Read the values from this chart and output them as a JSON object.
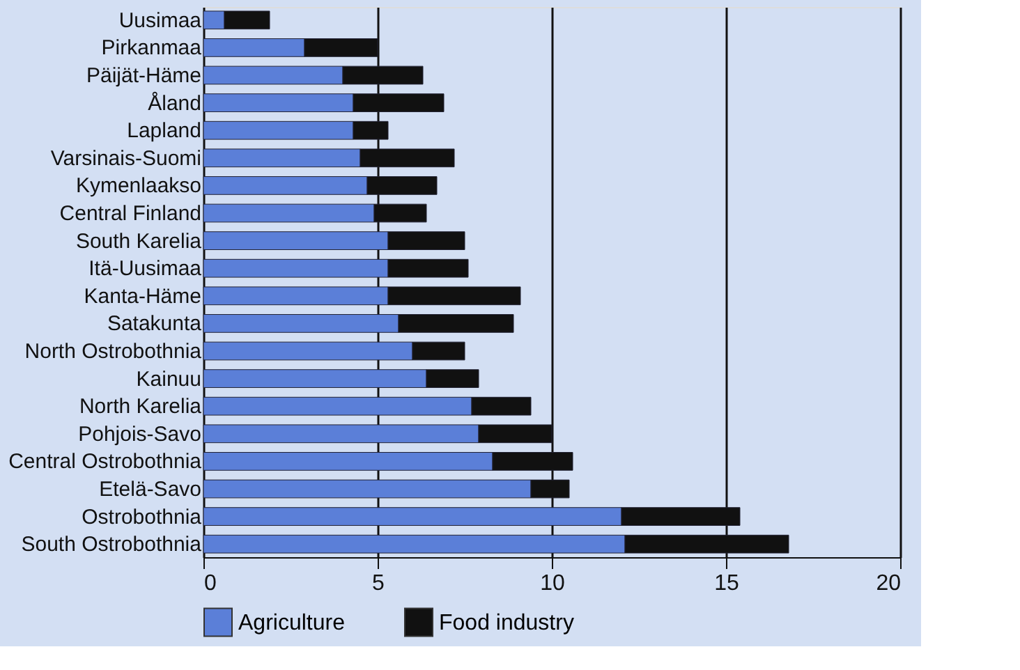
{
  "chart_data": {
    "type": "bar",
    "orientation": "horizontal",
    "stacked": true,
    "categories": [
      "Uusimaa",
      "Pirkanmaa",
      "Päijät-Häme",
      "Åland",
      "Lapland",
      "Varsinais-Suomi",
      "Kymenlaakso",
      "Central Finland",
      "South Karelia",
      "Itä-Uusimaa",
      "Kanta-Häme",
      "Satakunta",
      "North Ostrobothnia",
      "Kainuu",
      "North Karelia",
      "Pohjois-Savo",
      "Central Ostrobothnia",
      "Etelä-Savo",
      "Ostrobothnia",
      "South Ostrobothnia"
    ],
    "series": [
      {
        "name": "Agriculture",
        "color": "#5b7fd8",
        "values": [
          0.6,
          2.9,
          4.0,
          4.3,
          4.3,
          4.5,
          4.7,
          4.9,
          5.3,
          5.3,
          5.3,
          5.6,
          6.0,
          6.4,
          7.7,
          7.9,
          8.3,
          9.4,
          12.0,
          12.1
        ]
      },
      {
        "name": "Food industry",
        "color": "#111111",
        "values": [
          1.3,
          2.1,
          2.3,
          2.6,
          1.0,
          2.7,
          2.0,
          1.5,
          2.2,
          2.3,
          3.8,
          3.3,
          1.5,
          1.5,
          1.7,
          2.1,
          2.3,
          1.1,
          3.4,
          4.7
        ]
      }
    ],
    "xlim": [
      0,
      20
    ],
    "xticks": [
      0,
      5,
      10,
      15,
      20
    ],
    "grid": "x",
    "legend": "bottom"
  }
}
